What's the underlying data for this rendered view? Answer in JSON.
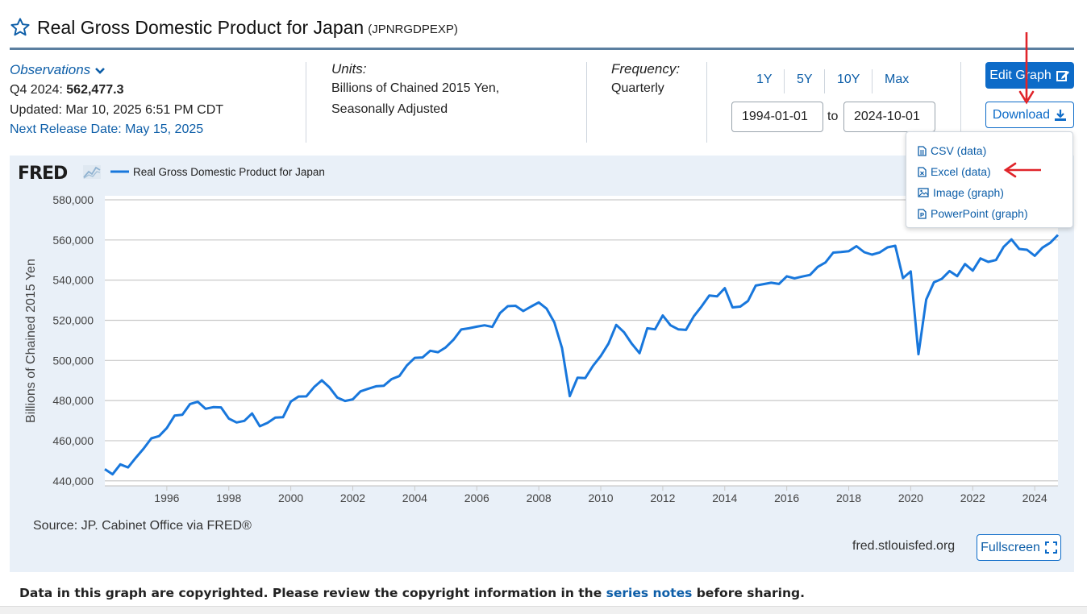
{
  "header": {
    "title": "Real Gross Domestic Product for Japan",
    "series_id": "(JPNRGDPEXP)"
  },
  "observations": {
    "label": "Observations",
    "latest_prefix": "Q4 2024:",
    "latest_value": "562,477.3",
    "updated": "Updated: Mar 10, 2025 6:51 PM CDT",
    "next_release": "Next Release Date: May 15, 2025"
  },
  "units": {
    "label": "Units:",
    "line1": "Billions of Chained 2015 Yen,",
    "line2": "Seasonally Adjusted"
  },
  "frequency": {
    "label": "Frequency:",
    "value": "Quarterly"
  },
  "range": {
    "buttons": [
      "1Y",
      "5Y",
      "10Y",
      "Max"
    ],
    "start": "1994-01-01",
    "to": "to",
    "end": "2024-10-01"
  },
  "actions": {
    "edit_graph": "Edit Graph",
    "download": "Download",
    "fullscreen": "Fullscreen"
  },
  "download_menu": {
    "items": [
      "CSV (data)",
      "Excel (data)",
      "Image (graph)",
      "PowerPoint (graph)"
    ]
  },
  "chart_meta": {
    "logo": "FRED",
    "source": "Source: JP. Cabinet Office via FRED®",
    "site": "fred.stlouisfed.org"
  },
  "footer": {
    "before": "Data in this graph are copyrighted. Please review the copyright information in the ",
    "link": "series notes",
    "after": " before sharing."
  },
  "colors": {
    "series_line": "#1877dc",
    "accent": "#0d6bc8",
    "annotation_arrow": "#e0242a"
  },
  "chart_data": {
    "type": "line",
    "title": "",
    "legend": [
      "Real Gross Domestic Product for Japan"
    ],
    "ylabel": "Billions of Chained 2015 Yen",
    "xlabel": "",
    "xlim": [
      1994.0,
      2024.75
    ],
    "ylim": [
      437500,
      582000
    ],
    "y_ticks": [
      440000,
      460000,
      480000,
      500000,
      520000,
      540000,
      560000,
      580000
    ],
    "y_tick_labels": [
      "440,000",
      "460,000",
      "480,000",
      "500,000",
      "520,000",
      "540,000",
      "560,000",
      "580,000"
    ],
    "x_tick_labels": [
      "1996",
      "1998",
      "2000",
      "2002",
      "2004",
      "2006",
      "2008",
      "2010",
      "2012",
      "2014",
      "2016",
      "2018",
      "2020",
      "2022",
      "2024"
    ],
    "x_start": 1994.0,
    "x_step": 0.25,
    "series": [
      {
        "name": "Real Gross Domestic Product for Japan",
        "values": [
          445800,
          443300,
          448200,
          446700,
          451500,
          456000,
          461200,
          462300,
          466300,
          472500,
          472900,
          478300,
          479400,
          475900,
          476700,
          476600,
          471000,
          469100,
          469900,
          473600,
          467200,
          468900,
          471500,
          471700,
          479500,
          482000,
          482100,
          486700,
          490100,
          486500,
          481500,
          479800,
          480600,
          484600,
          485900,
          487100,
          487400,
          490700,
          492200,
          497600,
          501300,
          501500,
          504800,
          504100,
          506500,
          510300,
          515400,
          516000,
          516800,
          517500,
          516700,
          523600,
          527000,
          527200,
          524600,
          526800,
          528900,
          525800,
          519000,
          506100,
          482200,
          491400,
          491200,
          497300,
          502200,
          508400,
          517700,
          514000,
          508300,
          503600,
          516000,
          515500,
          522400,
          517500,
          515500,
          515200,
          521900,
          526900,
          532300,
          531900,
          536000,
          526400,
          526800,
          529600,
          537300,
          538000,
          538700,
          538100,
          541900,
          540900,
          541800,
          542600,
          546600,
          548800,
          553700,
          554000,
          554400,
          556900,
          553900,
          552700,
          553800,
          556300,
          557100,
          541000,
          544300,
          503100,
          530300,
          538900,
          540600,
          544500,
          542000,
          548000,
          544700,
          550800,
          549100,
          550000,
          556600,
          560300,
          555500,
          555100,
          552100,
          556200,
          558600,
          562500
        ]
      }
    ]
  }
}
